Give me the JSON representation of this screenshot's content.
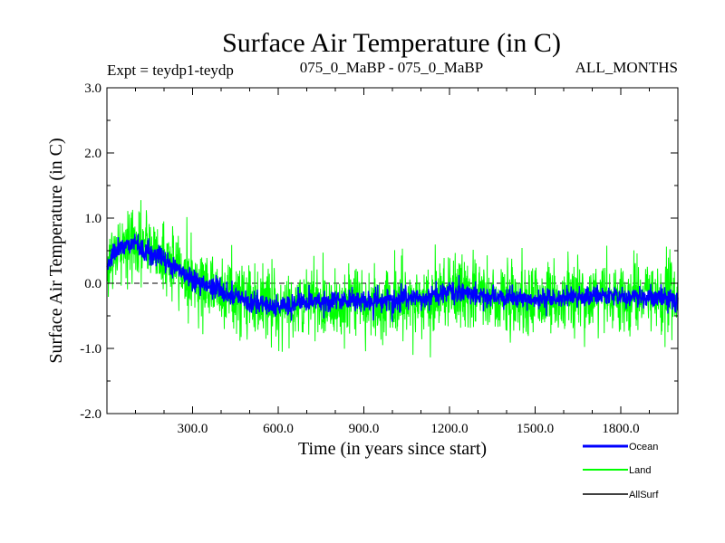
{
  "chart_data": {
    "type": "line",
    "title": "Surface Air Temperature (in C)",
    "subtitle_left": "Expt = teydp1-teydp",
    "subtitle_center": "075_0_MaBP - 075_0_MaBP",
    "subtitle_right": "ALL_MONTHS",
    "xlabel": "Time (in years since start)",
    "ylabel": "Surface Air Temperature (in C)",
    "xlim": [
      0,
      2000
    ],
    "ylim": [
      -2.0,
      3.0
    ],
    "x_ticks": [
      300,
      600,
      900,
      1200,
      1500,
      1800
    ],
    "x_tick_labels": [
      "300.0",
      "600.0",
      "900.0",
      "1200.0",
      "1500.0",
      "1800.0"
    ],
    "y_ticks": [
      -2.0,
      -1.0,
      0.0,
      1.0,
      2.0,
      3.0
    ],
    "y_tick_labels": [
      "-2.0",
      "-1.0",
      "0.0",
      "1.0",
      "2.0",
      "3.0"
    ],
    "zero_line": {
      "value": 0.0,
      "style": "dashed"
    },
    "series": [
      {
        "name": "Land",
        "color": "#00ff00",
        "noise_amplitude": 0.5,
        "trend": {
          "x": [
            0,
            50,
            100,
            150,
            200,
            250,
            300,
            400,
            500,
            600,
            700,
            900,
            1100,
            1200,
            1300,
            1500,
            1700,
            1800,
            2000
          ],
          "y": [
            0.3,
            0.55,
            0.6,
            0.55,
            0.4,
            0.25,
            0.05,
            -0.1,
            -0.25,
            -0.35,
            -0.3,
            -0.3,
            -0.3,
            -0.1,
            -0.2,
            -0.25,
            -0.2,
            -0.2,
            -0.25
          ]
        }
      },
      {
        "name": "Ocean",
        "color": "#0000ff",
        "noise_amplitude": 0.15,
        "trend": {
          "x": [
            0,
            50,
            100,
            150,
            200,
            250,
            300,
            400,
            500,
            600,
            700,
            900,
            1100,
            1200,
            1300,
            1500,
            1700,
            1800,
            2000
          ],
          "y": [
            0.3,
            0.55,
            0.6,
            0.5,
            0.35,
            0.2,
            0.05,
            -0.1,
            -0.3,
            -0.35,
            -0.3,
            -0.25,
            -0.25,
            -0.1,
            -0.2,
            -0.25,
            -0.2,
            -0.2,
            -0.25
          ]
        }
      },
      {
        "name": "AllSurf",
        "color": "#000000",
        "noise_amplitude": 0.0,
        "trend": {
          "x": [],
          "y": []
        }
      }
    ],
    "legend": [
      {
        "label": "Ocean",
        "color": "#0000ff"
      },
      {
        "label": "Land",
        "color": "#00ff00"
      },
      {
        "label": "AllSurf",
        "color": "#000000"
      }
    ],
    "legend_placement": "bottom-right"
  }
}
